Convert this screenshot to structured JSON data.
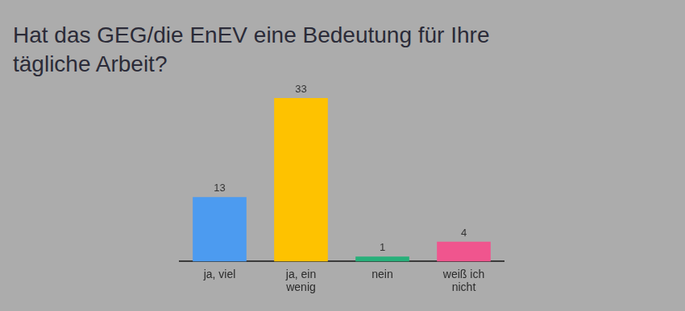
{
  "chart_data": {
    "type": "bar",
    "title": "Hat das GEG/die EnEV eine Bedeutung für Ihre tägliche Arbeit?",
    "categories": [
      "ja, viel",
      "ja, ein wenig",
      "nein",
      "weiß ich nicht"
    ],
    "values": [
      13,
      33,
      1,
      4
    ],
    "colors": [
      "#4c9bf0",
      "#fec200",
      "#27b07a",
      "#f0558e"
    ],
    "ylim": [
      0,
      33
    ],
    "grid": false,
    "data_labels": true,
    "tick_labels": "x"
  }
}
